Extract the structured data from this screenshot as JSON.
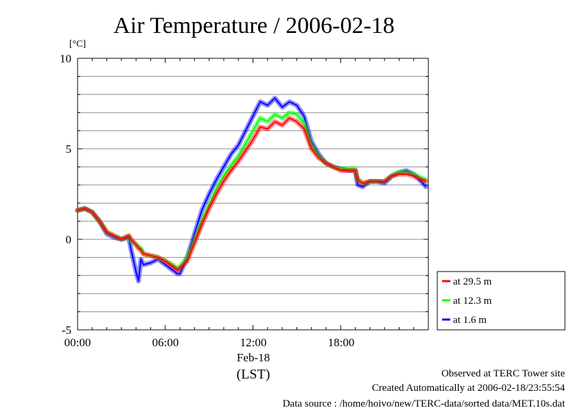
{
  "chart_data": {
    "type": "line",
    "title": "Air Temperature / 2006-02-18",
    "yunit": "[°C]",
    "xlabel": "(LST)",
    "xdate_label": "Feb-18",
    "ylim": [
      -5,
      10
    ],
    "xlim": [
      "00:00",
      "24:00"
    ],
    "yticks": [
      "10",
      "5",
      "0",
      "-5"
    ],
    "xticks": [
      "00:00",
      "06:00",
      "12:00",
      "18:00"
    ],
    "grid": true,
    "legend_position": "bottom-right-outside",
    "x": [
      "00:00",
      "00:30",
      "01:00",
      "01:30",
      "02:00",
      "02:30",
      "03:00",
      "03:30",
      "03:40",
      "04:00",
      "04:10",
      "04:20",
      "04:30",
      "05:00",
      "05:30",
      "06:00",
      "06:30",
      "06:50",
      "07:00",
      "07:30",
      "08:00",
      "08:30",
      "09:00",
      "09:30",
      "10:00",
      "10:30",
      "11:00",
      "11:30",
      "12:00",
      "12:30",
      "13:00",
      "13:30",
      "14:00",
      "14:30",
      "15:00",
      "15:30",
      "16:00",
      "16:30",
      "17:00",
      "17:30",
      "18:00",
      "18:30",
      "19:00",
      "19:10",
      "19:30",
      "20:00",
      "20:30",
      "21:00",
      "21:30",
      "22:00",
      "22:30",
      "23:00",
      "23:30",
      "23:50"
    ],
    "series": [
      {
        "name": "at 29.5 m",
        "color": "#ff0000",
        "values": [
          1.6,
          1.7,
          1.5,
          1.0,
          0.4,
          0.2,
          0.0,
          0.2,
          0.0,
          -0.3,
          -0.5,
          -0.6,
          -0.8,
          -0.9,
          -1.0,
          -1.2,
          -1.5,
          -1.7,
          -1.6,
          -1.2,
          -0.2,
          0.8,
          1.7,
          2.5,
          3.2,
          3.8,
          4.3,
          4.9,
          5.5,
          6.2,
          6.1,
          6.5,
          6.3,
          6.7,
          6.5,
          6.1,
          5.0,
          4.5,
          4.2,
          4.0,
          3.8,
          3.8,
          3.8,
          3.3,
          3.1,
          3.2,
          3.2,
          3.2,
          3.5,
          3.6,
          3.6,
          3.5,
          3.3,
          3.2
        ]
      },
      {
        "name": "at 12.3 m",
        "color": "#00ff00",
        "values": [
          1.6,
          1.7,
          1.5,
          1.0,
          0.4,
          0.2,
          0.0,
          0.2,
          -0.1,
          -0.3,
          -0.4,
          -0.5,
          -0.8,
          -0.9,
          -1.0,
          -1.2,
          -1.4,
          -1.6,
          -1.5,
          -1.0,
          -0.1,
          1.0,
          1.9,
          2.8,
          3.5,
          4.1,
          4.6,
          5.3,
          6.0,
          6.7,
          6.5,
          6.9,
          6.7,
          7.0,
          6.9,
          6.4,
          5.2,
          4.6,
          4.2,
          4.0,
          3.9,
          3.9,
          3.9,
          3.3,
          3.1,
          3.2,
          3.2,
          3.2,
          3.5,
          3.7,
          3.7,
          3.6,
          3.4,
          3.3
        ]
      },
      {
        "name": "at 1.6 m",
        "color": "#0000ff",
        "values": [
          1.6,
          1.7,
          1.5,
          1.0,
          0.3,
          0.1,
          0.0,
          0.1,
          -0.6,
          -1.8,
          -2.3,
          -1.1,
          -1.4,
          -1.3,
          -1.1,
          -1.4,
          -1.7,
          -1.9,
          -1.9,
          -1.0,
          0.3,
          1.6,
          2.5,
          3.3,
          4.0,
          4.7,
          5.2,
          6.0,
          6.8,
          7.6,
          7.4,
          7.8,
          7.3,
          7.6,
          7.4,
          6.8,
          5.4,
          4.7,
          4.2,
          4.0,
          3.9,
          3.8,
          3.8,
          3.0,
          2.9,
          3.2,
          3.2,
          3.1,
          3.5,
          3.7,
          3.8,
          3.6,
          3.2,
          2.9
        ]
      }
    ]
  },
  "footer": {
    "line1": "Observed at TERC Tower site",
    "line2": "Created Automatically at 2006-02-18/23:55:54",
    "line3": "Data source : /home/hoivo/new/TERC-data/sorted  data/MET.10s.dat"
  }
}
